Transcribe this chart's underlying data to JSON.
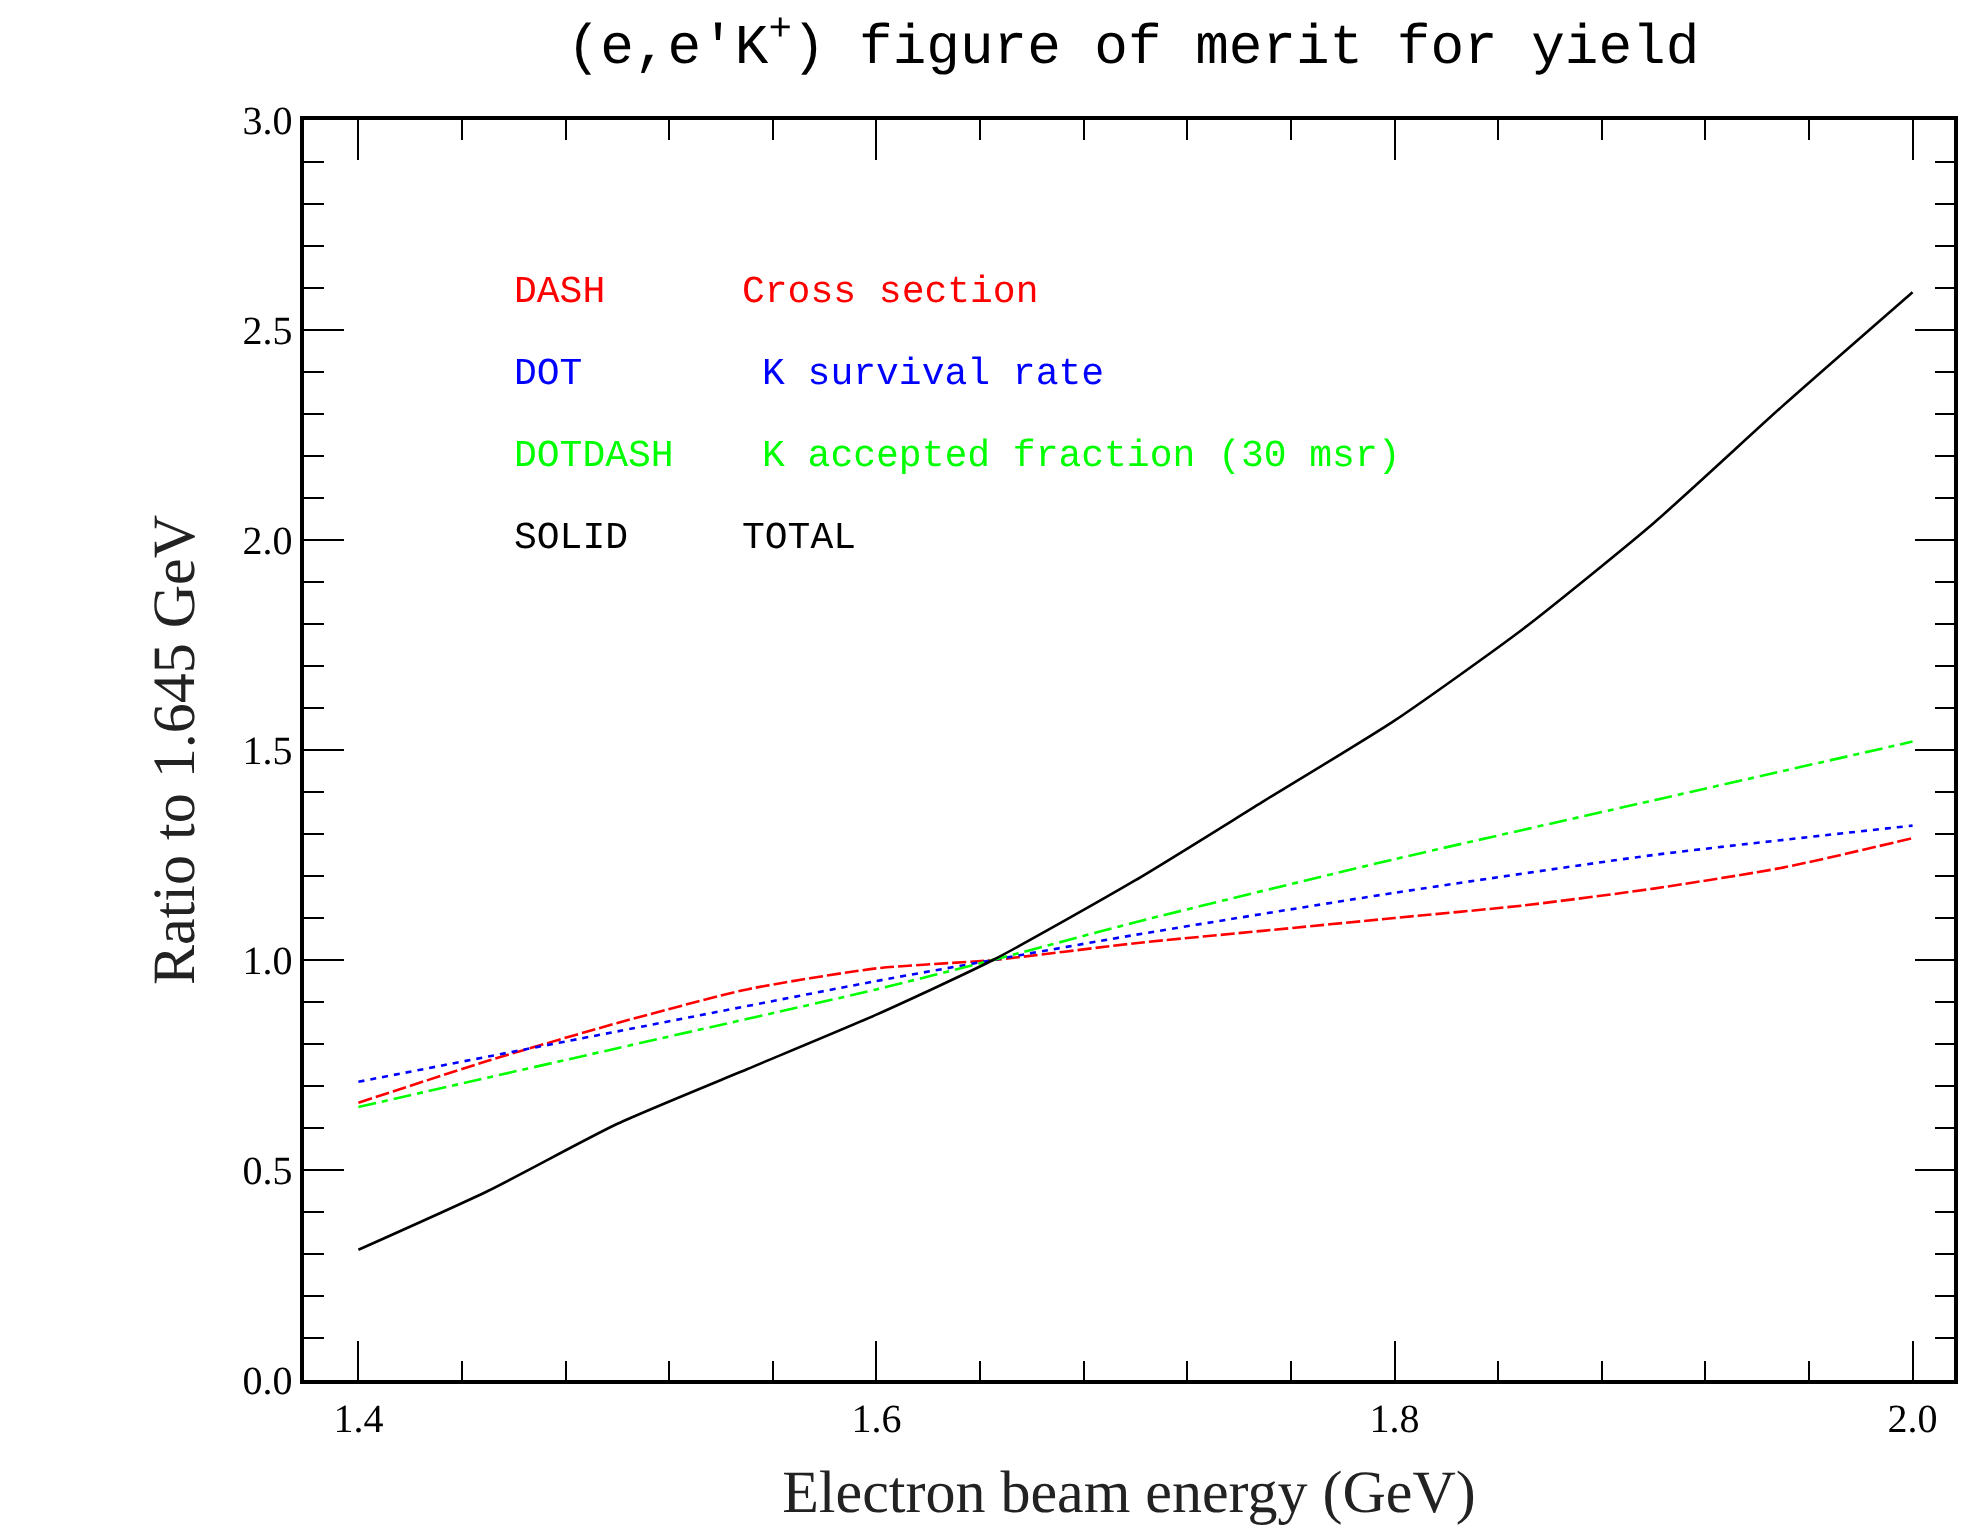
{
  "chart_data": {
    "type": "line",
    "title": "(e,e′K$^{+}$) figure of merit for yield",
    "xlabel": "Electron beam energy (GeV)",
    "ylabel": "Ratio to 1.645 GeV",
    "annotations": [
      "DASH",
      "DOT",
      "DOTDASH",
      "SOLID"
    ],
    "series": [
      {
        "name": "Cross section",
        "color": "#ff0000",
        "line_style": "dashed",
        "x": [
          1.4,
          1.45,
          1.5,
          1.55,
          1.6,
          1.645,
          1.7,
          1.75,
          1.8,
          1.85,
          1.9,
          1.95,
          2.0
        ],
        "values": [
          0.66,
          0.76,
          0.85,
          0.93,
          0.98,
          1.0,
          1.04,
          1.07,
          1.1,
          1.13,
          1.17,
          1.22,
          1.29
        ]
      },
      {
        "name": "K survival rate",
        "color": "#0000ff",
        "line_style": "dotted",
        "x": [
          1.4,
          1.5,
          1.6,
          1.645,
          1.7,
          1.8,
          1.9,
          2.0
        ],
        "values": [
          0.71,
          0.83,
          0.95,
          1.0,
          1.06,
          1.16,
          1.25,
          1.32
        ]
      },
      {
        "name": "K accepted fraction (30 msr)",
        "color": "#00ff00",
        "line_style": "dashdot",
        "x": [
          1.4,
          1.5,
          1.6,
          1.645,
          1.7,
          1.8,
          1.9,
          2.0
        ],
        "values": [
          0.65,
          0.79,
          0.93,
          1.0,
          1.09,
          1.24,
          1.38,
          1.52
        ]
      },
      {
        "name": "TOTAL",
        "color": "#000000",
        "line_style": "solid",
        "x": [
          1.4,
          1.45,
          1.5,
          1.55,
          1.6,
          1.645,
          1.7,
          1.75,
          1.8,
          1.85,
          1.9,
          1.95,
          2.0
        ],
        "values": [
          0.31,
          0.45,
          0.61,
          0.74,
          0.87,
          1.0,
          1.19,
          1.38,
          1.57,
          1.79,
          2.04,
          2.32,
          2.59
        ]
      }
    ],
    "xlim": [
      1.379,
      2.016
    ],
    "xticks": [
      1.4,
      1.6,
      1.8,
      {
        "value": 2,
        "label": "2.0"
      }
    ],
    "ylim": [
      0,
      3
    ],
    "yticks": [
      {
        "value": 0,
        "label": "0.0"
      },
      0.5,
      {
        "value": 1,
        "label": "1.0"
      },
      1.5,
      {
        "value": 2,
        "label": "2.0"
      },
      2.5,
      {
        "value": 3,
        "label": "3.0"
      }
    ],
    "legend": false,
    "marker": "none"
  }
}
